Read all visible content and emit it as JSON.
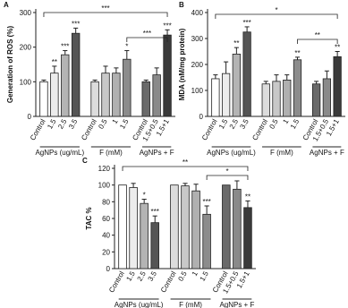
{
  "chart_data": [
    {
      "type": "bar",
      "panel": "A",
      "ylabel": "Generation of ROS (%)",
      "categories": [
        "Control",
        "1.5",
        "2.5",
        "3.5",
        "Control",
        "0.5",
        "1",
        "1.5",
        "Control",
        "1.5+0.5",
        "1.5+1"
      ],
      "groups": [
        "AgNPs (ug/mL)",
        "F (mM)",
        "AgNPs + F"
      ],
      "values": [
        100,
        125,
        178,
        240,
        100,
        125,
        125,
        165,
        100,
        120,
        235
      ],
      "errors": [
        5,
        20,
        12,
        15,
        5,
        20,
        15,
        25,
        5,
        20,
        15
      ],
      "significance": [
        null,
        "**",
        "***",
        "***",
        null,
        null,
        null,
        "*",
        null,
        null,
        "***"
      ],
      "comparisons": [
        "***",
        "***"
      ],
      "colors": [
        "#ffffff",
        "#ececec",
        "#b4b4b4",
        "#555555",
        "#dcdcdc",
        "#c8c8c8",
        "#b0b0b0",
        "#8c8c8c",
        "#6a6a6a",
        "#8a8a8a",
        "#3a3a3a"
      ],
      "ylim": [
        0,
        300
      ],
      "yticks": [
        0,
        100,
        200,
        300
      ]
    },
    {
      "type": "bar",
      "panel": "B",
      "ylabel": "MDA (nM/mg protein)",
      "categories": [
        "Control",
        "1.5",
        "2.5",
        "3.5",
        "Control",
        "0.5",
        "1",
        "1.5",
        "Control",
        "1.5+0.5",
        "1.5+1"
      ],
      "groups": [
        "AgNPs (ug/mL)",
        "F (mM)",
        "AgNPs + F"
      ],
      "values": [
        145,
        165,
        240,
        325,
        125,
        135,
        140,
        218,
        125,
        145,
        230
      ],
      "errors": [
        15,
        45,
        25,
        20,
        10,
        25,
        20,
        10,
        10,
        30,
        20
      ],
      "significance": [
        null,
        null,
        "**",
        "***",
        null,
        null,
        null,
        "**",
        null,
        null,
        "**"
      ],
      "comparisons": [
        "*",
        "**"
      ],
      "colors": [
        "#ffffff",
        "#ececec",
        "#b4b4b4",
        "#555555",
        "#dcdcdc",
        "#c8c8c8",
        "#b0b0b0",
        "#8c8c8c",
        "#6a6a6a",
        "#8a8a8a",
        "#3a3a3a"
      ],
      "ylim": [
        0,
        400
      ],
      "yticks": [
        0,
        100,
        200,
        300,
        400
      ]
    },
    {
      "type": "bar",
      "panel": "C",
      "ylabel": "TAC %",
      "categories": [
        "Control",
        "1.5",
        "2.5",
        "3.5",
        "Control",
        "0.5",
        "1",
        "1.5",
        "Control",
        "1.5+0.5",
        "1.5+1"
      ],
      "groups": [
        "AgNPs (ug/mL)",
        "F (mM)",
        "AgNPs + F"
      ],
      "values": [
        100,
        97,
        78,
        55,
        100,
        99,
        93,
        65,
        100,
        95,
        73
      ],
      "errors": [
        0,
        5,
        5,
        8,
        0,
        3,
        8,
        10,
        0,
        10,
        8
      ],
      "significance": [
        null,
        null,
        "*",
        "***",
        null,
        null,
        null,
        "***",
        null,
        null,
        "**"
      ],
      "comparisons": [
        "**",
        "*"
      ],
      "colors": [
        "#ffffff",
        "#ececec",
        "#b4b4b4",
        "#555555",
        "#dcdcdc",
        "#c8c8c8",
        "#b0b0b0",
        "#8c8c8c",
        "#6a6a6a",
        "#8a8a8a",
        "#3a3a3a"
      ],
      "ylim": [
        0,
        120
      ],
      "yticks": [
        0,
        20,
        40,
        60,
        80,
        100,
        120
      ]
    }
  ]
}
